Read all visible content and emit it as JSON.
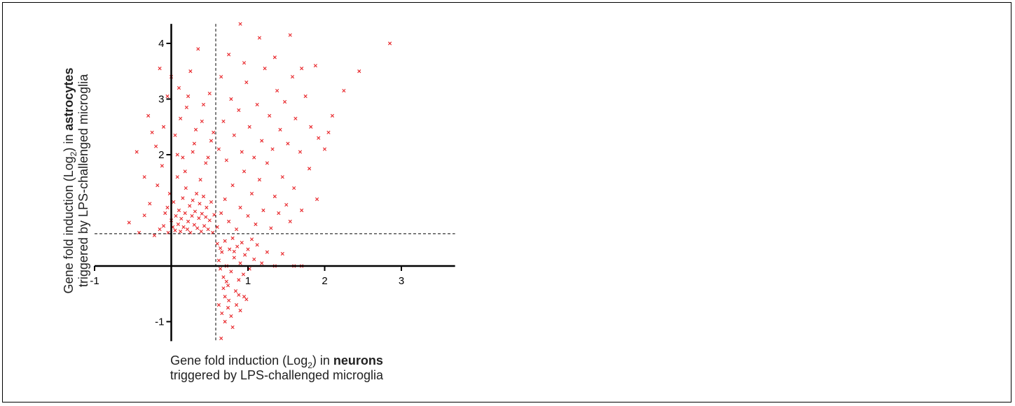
{
  "chart_data": {
    "type": "scatter",
    "title": "",
    "xlabel": {
      "line1_prefix": "Gene fold induction (Log",
      "line1_sub": "2",
      "line1_mid": ") in ",
      "line1_bold": "neurons",
      "line2": "triggered by LPS-challenged microglia"
    },
    "ylabel": {
      "line1_prefix": "Gene fold induction (Log",
      "line1_sub": "2",
      "line1_mid": ") in ",
      "line1_bold": "astrocytes",
      "line2": "triggered by LPS-challenged microglia"
    },
    "xlim": [
      -1,
      3.7
    ],
    "ylim": [
      -1.35,
      4.35
    ],
    "x_ticks": [
      {
        "v": -1,
        "label": "-1"
      },
      {
        "v": 1,
        "label": "1"
      },
      {
        "v": 2,
        "label": "2"
      },
      {
        "v": 3,
        "label": "3"
      }
    ],
    "y_ticks": [
      {
        "v": -1,
        "label": "-1"
      },
      {
        "v": 2,
        "label": "2"
      },
      {
        "v": 3,
        "label": "3"
      },
      {
        "v": 4,
        "label": "4"
      }
    ],
    "thresholds": {
      "x": 0.58,
      "y": 0.58
    },
    "marker": "x",
    "color": "#e8262a",
    "grid": false,
    "points": [
      [
        -0.55,
        0.78
      ],
      [
        -0.42,
        0.6
      ],
      [
        -0.35,
        0.91
      ],
      [
        -0.28,
        1.12
      ],
      [
        -0.22,
        0.55
      ],
      [
        -0.18,
        1.45
      ],
      [
        -0.15,
        0.66
      ],
      [
        -0.12,
        1.8
      ],
      [
        -0.1,
        0.72
      ],
      [
        -0.08,
        0.95
      ],
      [
        -0.05,
        1.05
      ],
      [
        -0.04,
        0.6
      ],
      [
        -0.02,
        1.3
      ],
      [
        0.0,
        0.82
      ],
      [
        0.02,
        0.7
      ],
      [
        0.03,
        1.15
      ],
      [
        0.05,
        0.64
      ],
      [
        0.06,
        0.9
      ],
      [
        0.08,
        1.6
      ],
      [
        0.09,
        0.75
      ],
      [
        0.1,
        1.0
      ],
      [
        0.12,
        0.62
      ],
      [
        0.13,
        0.85
      ],
      [
        0.15,
        1.22
      ],
      [
        0.16,
        0.7
      ],
      [
        0.18,
        0.95
      ],
      [
        0.19,
        1.4
      ],
      [
        0.21,
        0.66
      ],
      [
        0.22,
        0.8
      ],
      [
        0.24,
        1.08
      ],
      [
        0.25,
        0.6
      ],
      [
        0.27,
        0.9
      ],
      [
        0.28,
        1.18
      ],
      [
        0.3,
        0.74
      ],
      [
        0.31,
        0.98
      ],
      [
        0.33,
        1.3
      ],
      [
        0.34,
        0.68
      ],
      [
        0.36,
        0.86
      ],
      [
        0.37,
        1.12
      ],
      [
        0.39,
        0.62
      ],
      [
        0.4,
        0.94
      ],
      [
        0.42,
        1.25
      ],
      [
        0.43,
        0.72
      ],
      [
        0.45,
        0.88
      ],
      [
        0.46,
        1.05
      ],
      [
        0.48,
        0.66
      ],
      [
        0.5,
        0.82
      ],
      [
        0.52,
        1.15
      ],
      [
        0.54,
        0.6
      ],
      [
        0.56,
        0.92
      ],
      [
        -0.3,
        2.7
      ],
      [
        -0.2,
        2.15
      ],
      [
        -0.15,
        3.55
      ],
      [
        -0.1,
        2.5
      ],
      [
        -0.05,
        3.05
      ],
      [
        0.0,
        3.4
      ],
      [
        0.05,
        2.35
      ],
      [
        0.1,
        3.2
      ],
      [
        0.15,
        1.95
      ],
      [
        0.2,
        2.85
      ],
      [
        0.25,
        3.5
      ],
      [
        0.3,
        2.2
      ],
      [
        0.35,
        3.9
      ],
      [
        0.4,
        2.6
      ],
      [
        0.45,
        1.85
      ],
      [
        0.5,
        3.1
      ],
      [
        0.55,
        2.4
      ],
      [
        -0.45,
        2.05
      ],
      [
        -0.35,
        1.6
      ],
      [
        -0.25,
        2.4
      ],
      [
        0.08,
        2.0
      ],
      [
        0.18,
        1.7
      ],
      [
        0.28,
        2.05
      ],
      [
        0.38,
        1.55
      ],
      [
        0.48,
        1.95
      ],
      [
        0.12,
        2.65
      ],
      [
        0.22,
        3.05
      ],
      [
        0.32,
        2.45
      ],
      [
        0.42,
        2.9
      ],
      [
        0.52,
        2.25
      ],
      [
        0.6,
        0.7
      ],
      [
        0.65,
        0.95
      ],
      [
        0.7,
        1.2
      ],
      [
        0.75,
        0.8
      ],
      [
        0.8,
        1.45
      ],
      [
        0.85,
        0.66
      ],
      [
        0.9,
        1.05
      ],
      [
        0.95,
        1.7
      ],
      [
        1.0,
        0.9
      ],
      [
        1.05,
        1.3
      ],
      [
        1.1,
        0.75
      ],
      [
        1.15,
        1.55
      ],
      [
        1.2,
        1.0
      ],
      [
        1.25,
        1.85
      ],
      [
        1.3,
        0.68
      ],
      [
        1.35,
        1.25
      ],
      [
        1.4,
        0.95
      ],
      [
        1.45,
        1.6
      ],
      [
        1.5,
        1.1
      ],
      [
        1.55,
        0.8
      ],
      [
        1.6,
        1.4
      ],
      [
        1.7,
        1.0
      ],
      [
        1.8,
        1.75
      ],
      [
        1.9,
        1.2
      ],
      [
        0.62,
        2.1
      ],
      [
        0.68,
        2.6
      ],
      [
        0.72,
        1.9
      ],
      [
        0.78,
        3.0
      ],
      [
        0.82,
        2.35
      ],
      [
        0.88,
        2.8
      ],
      [
        0.92,
        2.05
      ],
      [
        0.98,
        3.3
      ],
      [
        1.02,
        2.5
      ],
      [
        1.08,
        1.95
      ],
      [
        1.12,
        2.9
      ],
      [
        1.18,
        2.25
      ],
      [
        1.22,
        3.55
      ],
      [
        1.28,
        2.7
      ],
      [
        1.32,
        2.1
      ],
      [
        1.38,
        3.15
      ],
      [
        1.42,
        2.45
      ],
      [
        1.48,
        2.95
      ],
      [
        1.52,
        2.2
      ],
      [
        1.58,
        3.4
      ],
      [
        1.62,
        2.65
      ],
      [
        1.68,
        2.05
      ],
      [
        1.75,
        3.05
      ],
      [
        1.82,
        2.5
      ],
      [
        1.88,
        3.6
      ],
      [
        1.92,
        2.3
      ],
      [
        2.0,
        2.1
      ],
      [
        2.1,
        2.7
      ],
      [
        2.25,
        3.15
      ],
      [
        2.45,
        3.5
      ],
      [
        0.75,
        3.8
      ],
      [
        0.9,
        4.35
      ],
      [
        1.15,
        4.1
      ],
      [
        1.35,
        3.75
      ],
      [
        1.55,
        4.15
      ],
      [
        2.85,
        4.0
      ],
      [
        0.65,
        3.4
      ],
      [
        0.95,
        3.65
      ],
      [
        1.7,
        3.55
      ],
      [
        2.05,
        2.4
      ],
      [
        0.6,
        0.4
      ],
      [
        0.62,
        0.1
      ],
      [
        0.64,
        -0.05
      ],
      [
        0.66,
        0.25
      ],
      [
        0.68,
        -0.2
      ],
      [
        0.7,
        0.45
      ],
      [
        0.72,
        0.0
      ],
      [
        0.74,
        -0.35
      ],
      [
        0.76,
        0.3
      ],
      [
        0.78,
        -0.1
      ],
      [
        0.8,
        0.5
      ],
      [
        0.82,
        0.15
      ],
      [
        0.84,
        -0.45
      ],
      [
        0.86,
        0.35
      ],
      [
        0.88,
        -0.25
      ],
      [
        0.9,
        0.05
      ],
      [
        0.92,
        0.42
      ],
      [
        0.94,
        -0.15
      ],
      [
        0.96,
        0.2
      ],
      [
        0.98,
        -0.6
      ],
      [
        1.0,
        0.3
      ],
      [
        1.02,
        -0.05
      ],
      [
        1.05,
        0.48
      ],
      [
        1.08,
        0.12
      ],
      [
        1.12,
        0.38
      ],
      [
        1.18,
        0.05
      ],
      [
        1.25,
        0.25
      ],
      [
        1.35,
        0.0
      ],
      [
        1.45,
        0.22
      ],
      [
        1.6,
        0.0
      ],
      [
        1.7,
        0.0
      ],
      [
        0.62,
        -0.7
      ],
      [
        0.66,
        -0.85
      ],
      [
        0.7,
        -1.0
      ],
      [
        0.74,
        -0.75
      ],
      [
        0.78,
        -0.9
      ],
      [
        0.8,
        -1.1
      ],
      [
        0.85,
        -0.7
      ],
      [
        0.65,
        -1.3
      ],
      [
        0.7,
        -0.55
      ],
      [
        0.75,
        -0.62
      ],
      [
        0.9,
        -0.8
      ],
      [
        0.95,
        -0.55
      ],
      [
        0.68,
        -0.4
      ],
      [
        0.72,
        -0.28
      ],
      [
        0.88,
        -0.52
      ],
      [
        0.64,
        0.32
      ],
      [
        0.82,
        0.26
      ]
    ]
  }
}
